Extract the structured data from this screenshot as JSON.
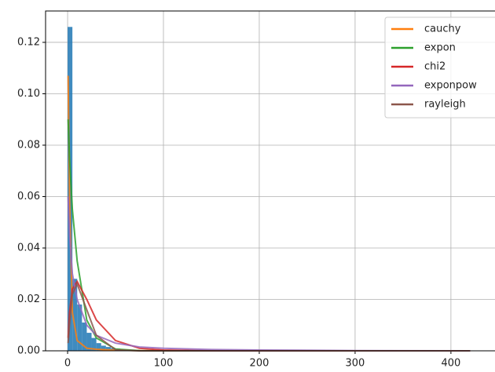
{
  "chart_data": {
    "type": "hist",
    "bins": [
      0,
      5,
      10,
      15,
      20,
      25,
      30,
      35,
      40,
      45,
      50,
      55,
      60
    ],
    "counts": [
      0.126,
      0.028,
      0.018,
      0.011,
      0.007,
      0.005,
      0.003,
      0.002,
      0.0015,
      0.001,
      0.0008,
      0.0005
    ],
    "color": "#1f77b4",
    "x": [
      0.5,
      2,
      5,
      10,
      20,
      30,
      50,
      75,
      100,
      150,
      200,
      300,
      420
    ],
    "series": [
      {
        "name": "cauchy",
        "color": "#ff7f0e",
        "values": [
          0.107,
          0.06,
          0.015,
          0.004,
          0.001,
          0.0006,
          0.0002,
          0.0001,
          0.0001,
          0,
          0,
          0,
          0
        ]
      },
      {
        "name": "expon",
        "color": "#2ca02c",
        "values": [
          0.09,
          0.075,
          0.055,
          0.035,
          0.012,
          0.005,
          0.0007,
          0.0001,
          0,
          0,
          0,
          0,
          0
        ]
      },
      {
        "name": "chi2",
        "color": "#d62728",
        "values": [
          0.005,
          0.015,
          0.024,
          0.027,
          0.02,
          0.012,
          0.004,
          0.001,
          0.0003,
          0,
          0,
          0,
          0
        ]
      },
      {
        "name": "exponpow",
        "color": "#9467bd",
        "values": [
          0.06,
          0.045,
          0.03,
          0.02,
          0.01,
          0.006,
          0.003,
          0.0015,
          0.001,
          0.0005,
          0.0003,
          0.0001,
          0
        ]
      },
      {
        "name": "rayleigh",
        "color": "#8c564b",
        "values": [
          0.003,
          0.01,
          0.022,
          0.026,
          0.016,
          0.006,
          0.0004,
          0,
          0,
          0,
          0,
          0,
          0
        ]
      }
    ],
    "xlim": [
      -23,
      446
    ],
    "ylim": [
      0,
      0.1322
    ],
    "xticks": [
      0,
      100,
      200,
      300,
      400
    ],
    "yticks": [
      {
        "value": 0,
        "label": "0.00"
      },
      {
        "value": 0.02,
        "label": "0.02"
      },
      {
        "value": 0.04,
        "label": "0.04"
      },
      {
        "value": 0.06,
        "label": "0.06"
      },
      {
        "value": 0.08,
        "label": "0.08"
      },
      {
        "value": 0.1,
        "label": "0.10"
      },
      {
        "value": 0.12,
        "label": "0.12"
      }
    ],
    "grid": true,
    "legend": "upper right"
  }
}
